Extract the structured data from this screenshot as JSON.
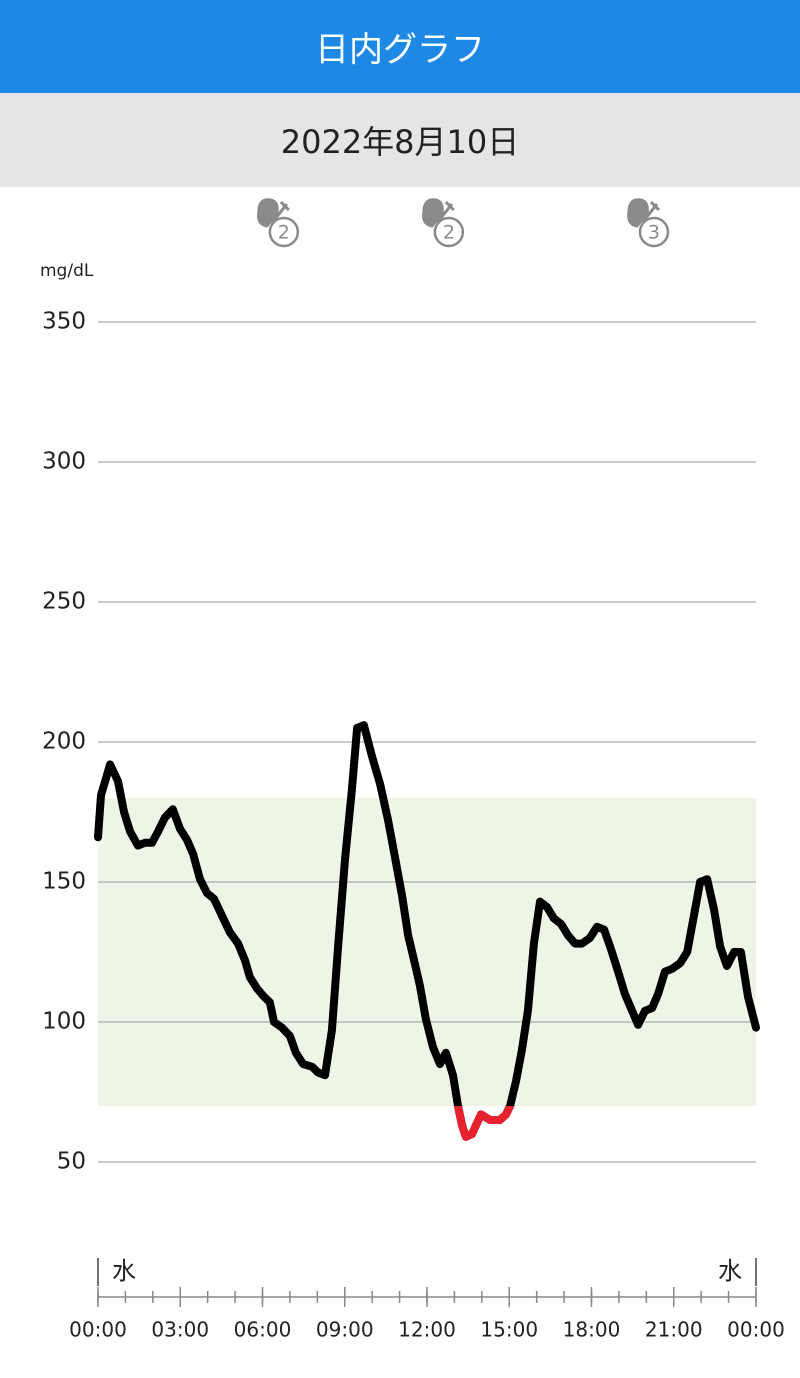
{
  "header": {
    "title": "日内グラフ"
  },
  "date": "2022年8月10日",
  "chart_data": {
    "type": "line",
    "y_label": "mg/dL",
    "x": [
      0,
      0.11,
      0.44,
      0.73,
      0.95,
      1.17,
      1.46,
      1.71,
      1.97,
      2.19,
      2.44,
      2.73,
      2.99,
      3.25,
      3.47,
      3.72,
      3.98,
      4.23,
      4.52,
      4.81,
      5.11,
      5.36,
      5.54,
      5.8,
      6.06,
      6.27,
      6.42,
      6.71,
      7.0,
      7.22,
      7.48,
      7.81,
      8.02,
      8.28,
      8.53,
      8.75,
      9.01,
      9.26,
      9.45,
      9.7,
      9.99,
      10.29,
      10.58,
      10.83,
      11.09,
      11.31,
      11.53,
      11.74,
      11.96,
      12.22,
      12.47,
      12.69,
      12.95,
      13.13,
      13.28,
      13.42,
      13.64,
      13.97,
      14.3,
      14.66,
      14.88,
      15.03,
      15.25,
      15.46,
      15.68,
      15.9,
      16.12,
      16.38,
      16.63,
      16.89,
      17.14,
      17.4,
      17.65,
      17.94,
      18.2,
      18.46,
      18.71,
      18.97,
      19.22,
      19.48,
      19.7,
      19.95,
      20.21,
      20.43,
      20.68,
      20.94,
      21.23,
      21.49,
      21.7,
      21.96,
      22.22,
      22.47,
      22.69,
      22.94,
      23.2,
      23.45,
      23.71,
      24
    ],
    "series": [
      {
        "color": "#000000",
        "low_color": "#e8212e",
        "values": [
          166,
          181,
          192,
          186,
          175,
          168,
          163,
          164,
          164,
          168,
          173,
          176,
          169,
          165,
          160,
          151,
          146,
          144,
          138,
          132,
          128,
          122,
          116,
          112,
          109,
          107,
          100,
          98,
          95,
          89,
          85,
          84,
          82,
          81,
          97,
          126,
          158,
          183,
          205,
          206,
          195,
          185,
          172,
          159,
          145,
          131,
          122,
          113,
          101,
          91,
          85,
          89,
          81,
          70,
          63,
          59,
          60,
          67,
          65,
          65,
          67,
          70,
          79,
          90,
          104,
          128,
          143,
          141,
          137,
          135,
          131,
          128,
          128,
          130,
          134,
          133,
          126,
          118,
          110,
          104,
          99,
          104,
          105,
          110,
          118,
          119,
          121,
          125,
          136,
          150,
          151,
          140,
          127,
          120,
          125,
          125,
          109,
          98
        ]
      }
    ],
    "target_range": [
      70,
      180
    ],
    "target_color": "#eef5e6",
    "xlim": [
      0,
      24
    ],
    "xticks": [
      {
        "value": 0,
        "label": "00:00"
      },
      {
        "value": 3,
        "label": "03:00"
      },
      {
        "value": 6,
        "label": "06:00"
      },
      {
        "value": 9,
        "label": "09:00"
      },
      {
        "value": 12,
        "label": "12:00"
      },
      {
        "value": 15,
        "label": "15:00"
      },
      {
        "value": 18,
        "label": "18:00"
      },
      {
        "value": 21,
        "label": "21:00"
      },
      {
        "value": 24,
        "label": "00:00"
      }
    ],
    "ylim": [
      50,
      350
    ],
    "yticks": [
      50,
      100,
      150,
      200,
      250,
      300,
      350
    ],
    "grid": true,
    "day_labels": [
      "水",
      "水"
    ],
    "events": [
      {
        "x": 6.45,
        "count": 2
      },
      {
        "x": 12.47,
        "count": 2
      },
      {
        "x": 19.95,
        "count": 3
      }
    ]
  }
}
